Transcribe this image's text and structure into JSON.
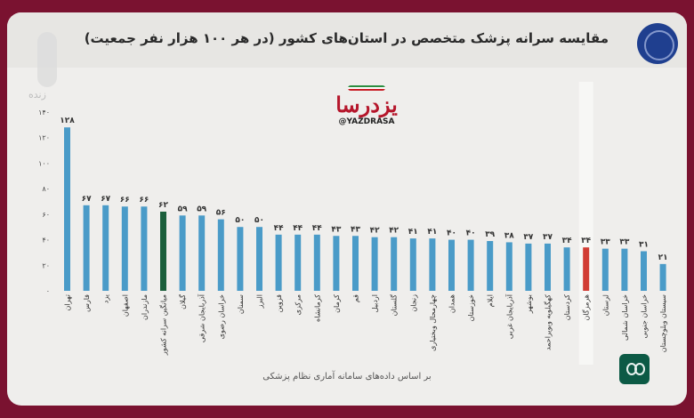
{
  "header": {
    "title": "مقایسه سرانه پزشک متخصص در استان‌های کشور (در هر ۱۰۰ هزار نفر جمعیت)"
  },
  "channel": {
    "label": "زنده"
  },
  "watermark": {
    "logo_text": "یزدرسا",
    "handle": "@YAZDRASA"
  },
  "footnote": "بر اساس داده‌های سامانه آماری نظام پزشکی",
  "colors": {
    "bar": "#4a9bc8",
    "national_average": "#1b5f3b",
    "highlight": "#d13c34",
    "highlight_band": "#f7f7f5"
  },
  "chart_data": {
    "type": "bar",
    "categories": [
      "تهران",
      "فارس",
      "یزد",
      "اصفهان",
      "مازندران",
      "میانگین سرانه کشور",
      "گیلان",
      "آذربایجان شرقی",
      "خراسان رضوی",
      "سمنان",
      "البرز",
      "قزوین",
      "مرکزی",
      "کرمانشاه",
      "کرمان",
      "قم",
      "اردبیل",
      "گلستان",
      "زنجان",
      "چهارمحال وبختیاری",
      "همدان",
      "خوزستان",
      "ایلام",
      "آذربایجان غربی",
      "بوشهر",
      "کهگیلویه وبویراحمد",
      "کردستان",
      "هرمزگان",
      "لرستان",
      "خراسان شمالی",
      "خراسان جنوبی",
      "سیستان وبلوچستان"
    ],
    "values": [
      128,
      67,
      67,
      66,
      66,
      62,
      59,
      59,
      56,
      50,
      50,
      44,
      44,
      44,
      43,
      43,
      42,
      42,
      41,
      41,
      40,
      40,
      39,
      38,
      37,
      37,
      34,
      34,
      33,
      33,
      31,
      21
    ],
    "value_labels": [
      "۱۲۸",
      "۶۷",
      "۶۷",
      "۶۶",
      "۶۶",
      "۶۲",
      "۵۹",
      "۵۹",
      "۵۶",
      "۵۰",
      "۵۰",
      "۴۴",
      "۴۴",
      "۴۴",
      "۴۳",
      "۴۳",
      "۴۲",
      "۴۲",
      "۴۱",
      "۴۱",
      "۴۰",
      "۴۰",
      "۳۹",
      "۳۸",
      "۳۷",
      "۳۷",
      "۳۴",
      "۳۴",
      "۳۳",
      "۳۳",
      "۳۱",
      "۲۱"
    ],
    "y_ticks": [
      0,
      20,
      40,
      60,
      80,
      100,
      120,
      140
    ],
    "y_tick_labels": [
      "۰",
      "۲۰",
      "۴۰",
      "۶۰",
      "۸۰",
      "۱۰۰",
      "۱۲۰",
      "۱۴۰"
    ],
    "ylim": [
      0,
      140
    ],
    "national_average_category": "میانگین سرانه کشور",
    "highlighted_category": "هرمزگان",
    "grid": false,
    "legend": "none"
  }
}
